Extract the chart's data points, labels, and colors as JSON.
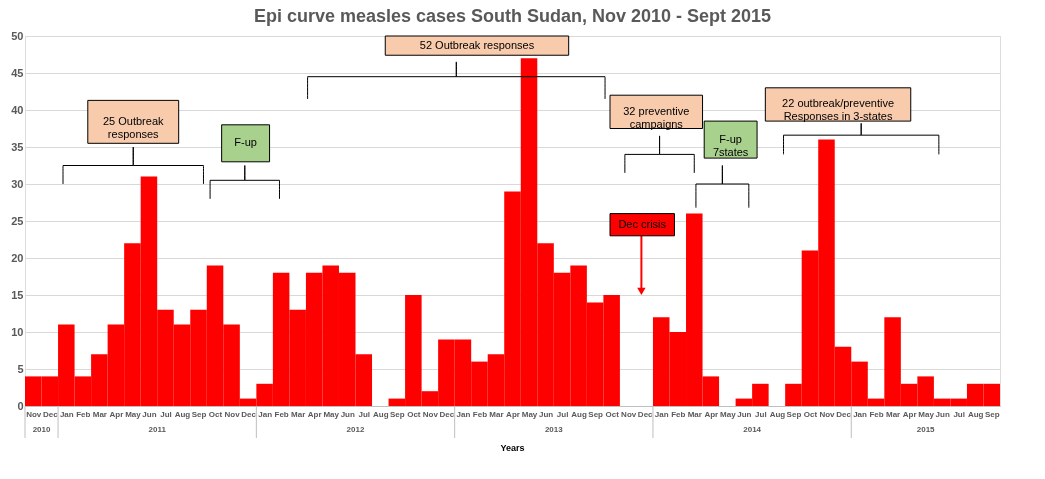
{
  "chart_data": {
    "type": "bar",
    "title": "Epi curve measles cases South Sudan, Nov 2010 -  Sept 2015",
    "xlabel": "Years",
    "categories": [
      "Nov",
      "Dec",
      "Jan",
      "Feb",
      "Mar",
      "Apr",
      "May",
      "Jun",
      "Jul",
      "Aug",
      "Sep",
      "Oct",
      "Nov",
      "Dec",
      "Jan",
      "Feb",
      "Mar",
      "Apr",
      "May",
      "Jun",
      "Jul",
      "Aug",
      "Sep",
      "Oct",
      "Nov",
      "Dec",
      "Jan",
      "Feb",
      "Mar",
      "Apr",
      "May",
      "Jun",
      "Jul",
      "Aug",
      "Sep",
      "Oct",
      "Nov",
      "Dec",
      "Jan",
      "Feb",
      "Mar",
      "Apr",
      "May",
      "Jun",
      "Jul",
      "Aug",
      "Sep",
      "Oct",
      "Nov",
      "Dec",
      "Jan",
      "Feb",
      "Mar",
      "Apr",
      "May",
      "Jun",
      "Jul",
      "Aug",
      "Sep"
    ],
    "values": [
      4,
      4,
      11,
      4,
      7,
      11,
      22,
      31,
      13,
      11,
      13,
      19,
      11,
      1,
      3,
      18,
      13,
      18,
      19,
      18,
      7,
      0,
      1,
      15,
      2,
      9,
      9,
      6,
      7,
      29,
      47,
      22,
      18,
      19,
      14,
      15,
      0,
      0,
      12,
      10,
      26,
      4,
      0,
      1,
      3,
      0,
      3,
      21,
      36,
      8,
      6,
      1,
      12,
      3,
      4,
      1,
      1,
      3,
      3
    ],
    "color": "#ff0000",
    "ylim": [
      0,
      50
    ],
    "yticks": [
      0,
      5,
      10,
      15,
      20,
      25,
      30,
      35,
      40,
      45,
      50
    ],
    "grid": "y",
    "annotations": [
      "25 Outbreak\nresponses",
      "F-up",
      "52 Outbreak responses",
      "32 preventive\ncampaigns",
      "F-up\n7states",
      "22 outbreak/preventive\nResponses in 3-states",
      "Dec crisis",
      "2010",
      "2011",
      "2012",
      "2013",
      "2014",
      "2015"
    ]
  }
}
